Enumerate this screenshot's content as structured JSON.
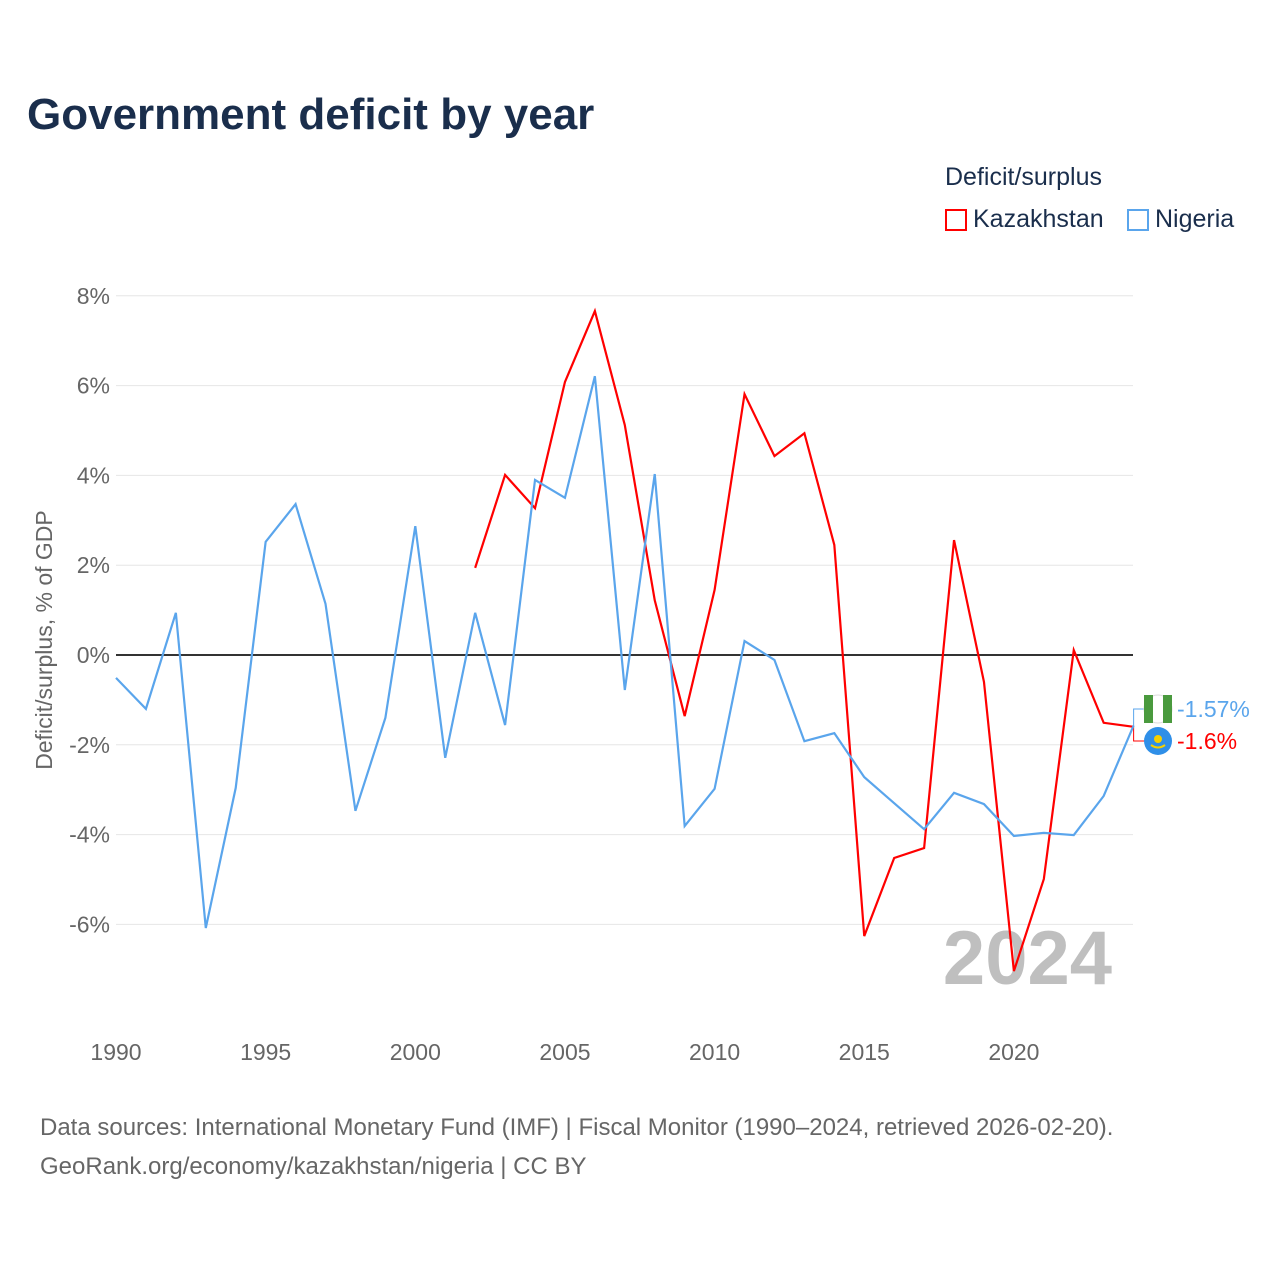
{
  "title": "Government deficit by year",
  "legend": {
    "title": "Deficit/surplus",
    "items": [
      {
        "name": "Kazakhstan",
        "color": "#ff0000"
      },
      {
        "name": "Nigeria",
        "color": "#5aa5ec"
      }
    ]
  },
  "sources": [
    "Data sources: International Monetary Fund (IMF) | Fiscal Monitor (1990–2024, retrieved 2026-02-20).",
    "GeoRank.org/economy/kazakhstan/nigeria | CC BY"
  ],
  "chart_data": {
    "type": "line",
    "ylabel": "Deficit/surplus, % of GDP",
    "xlim": [
      1990,
      2024
    ],
    "ylim": [
      -8.2,
      8.5
    ],
    "xticks": [
      1990,
      1995,
      2000,
      2005,
      2010,
      2015,
      2020
    ],
    "xtick_labels": [
      "1990",
      "1995",
      "2000",
      "2005",
      "2010",
      "2015",
      "2020"
    ],
    "yticks": [
      8,
      6,
      4,
      2,
      0,
      -2,
      -4,
      -6
    ],
    "ytick_labels": [
      "8%",
      "6%",
      "4%",
      "2%",
      "0%",
      "-2%",
      "-4%",
      "-6%"
    ],
    "watermark_year": "2024",
    "series": [
      {
        "name": "Kazakhstan",
        "color": "#ff0000",
        "end_label": "-1.6%",
        "x": [
          2002,
          2003,
          2004,
          2005,
          2006,
          2007,
          2008,
          2009,
          2010,
          2011,
          2012,
          2013,
          2014,
          2015,
          2016,
          2017,
          2018,
          2019,
          2020,
          2021,
          2022,
          2023,
          2024
        ],
        "values": [
          1.94,
          4.01,
          3.27,
          6.08,
          7.66,
          5.12,
          1.22,
          -1.36,
          1.45,
          5.81,
          4.43,
          4.94,
          2.45,
          -6.26,
          -4.52,
          -4.3,
          2.56,
          -0.6,
          -7.04,
          -4.99,
          0.11,
          -1.51,
          -1.6
        ]
      },
      {
        "name": "Nigeria",
        "color": "#5aa5ec",
        "end_label": "-1.57%",
        "x": [
          1990,
          1991,
          1992,
          1993,
          1994,
          1995,
          1996,
          1997,
          1998,
          1999,
          2000,
          2001,
          2002,
          2003,
          2004,
          2005,
          2006,
          2007,
          2008,
          2009,
          2010,
          2011,
          2012,
          2013,
          2014,
          2015,
          2016,
          2017,
          2018,
          2019,
          2020,
          2021,
          2022,
          2023,
          2024
        ],
        "values": [
          -0.51,
          -1.2,
          0.94,
          -6.08,
          -2.96,
          2.52,
          3.36,
          1.14,
          -3.47,
          -1.4,
          2.87,
          -2.29,
          0.94,
          -1.56,
          3.9,
          3.5,
          6.21,
          -0.78,
          4.03,
          -3.81,
          -2.98,
          0.31,
          -0.11,
          -1.92,
          -1.74,
          -2.72,
          -3.3,
          -3.88,
          -3.07,
          -3.32,
          -4.03,
          -3.96,
          -4.01,
          -3.14,
          -1.57
        ]
      }
    ]
  }
}
